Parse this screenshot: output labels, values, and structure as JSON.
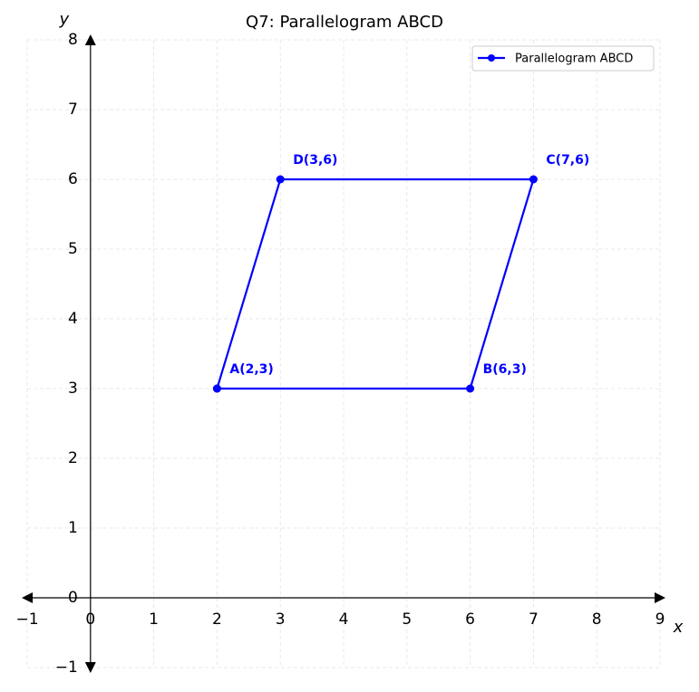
{
  "chart_data": {
    "type": "line",
    "title": "Q7: Parallelogram ABCD",
    "x_label": "x",
    "y_label": "y",
    "x": [
      2,
      6,
      7,
      3,
      2
    ],
    "series": [
      {
        "name": "Parallelogram ABCD",
        "color": "#0000ff",
        "values": [
          3,
          3,
          6,
          6,
          3
        ],
        "point_labels": [
          "A(2,3)",
          "B(6,3)",
          "C(7,6)",
          "D(3,6)",
          null
        ]
      }
    ],
    "xlim": [
      -1,
      9
    ],
    "ylim": [
      -1,
      8
    ],
    "xticks": [
      {
        "value": -1,
        "label": "−1"
      },
      0,
      1,
      2,
      3,
      4,
      5,
      6,
      7,
      8,
      9
    ],
    "yticks": [
      {
        "value": -1,
        "label": "−1"
      },
      0,
      1,
      2,
      3,
      4,
      5,
      6,
      7,
      8
    ],
    "grid": true,
    "legend": "upper right"
  }
}
